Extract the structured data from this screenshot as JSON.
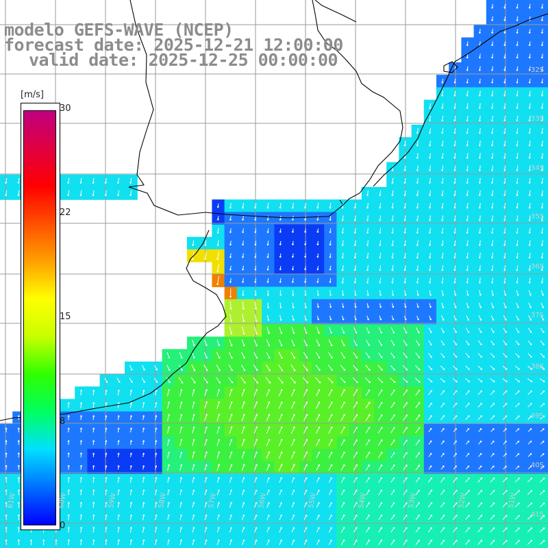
{
  "title": {
    "line1": "modelo GEFS-WAVE (NCEP)",
    "line2": "forecast date: 2025-12-21 12:00:00",
    "line3": "valid date: 2025-12-25 00:00:00"
  },
  "colorbar": {
    "unit": "[m/s]",
    "min": 0,
    "max": 30,
    "ticks": [
      "30",
      "22",
      "15",
      "8",
      "0"
    ],
    "tick_values": [
      30,
      22,
      15,
      8,
      0
    ],
    "stops": [
      "#0000ff",
      "#0070ff",
      "#00e0ff",
      "#00ff60",
      "#30ff00",
      "#c8ff00",
      "#ffff00",
      "#ffa000",
      "#ff5000",
      "#ff0000",
      "#e00040",
      "#c00080"
    ]
  },
  "grid": {
    "lat_labels": [
      "32S",
      "33S",
      "34S",
      "35S",
      "36S",
      "37S",
      "38S",
      "39S",
      "40S",
      "41S"
    ],
    "lon_labels": [
      "61W",
      "60W",
      "59W",
      "58W",
      "57W",
      "56W",
      "55W",
      "54W",
      "53W",
      "52W",
      "51W"
    ]
  },
  "field": {
    "variable": "wind speed",
    "colors": [
      "#0a3cf5",
      "#1e78ff",
      "#1fb4ff",
      "#11e0f0",
      "#17f0b4",
      "#24f07a",
      "#3cf040",
      "#5af028",
      "#aef030",
      "#f0e000",
      "#f08000"
    ]
  }
}
